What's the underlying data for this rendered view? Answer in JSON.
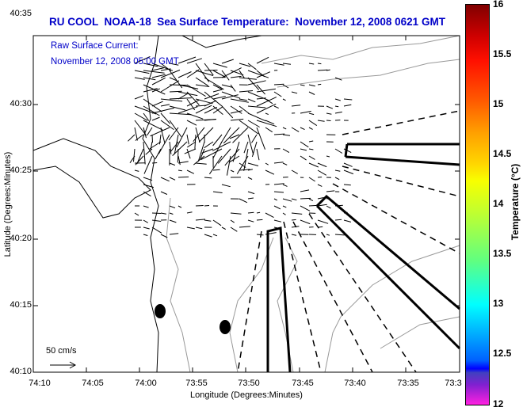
{
  "chart_data": {
    "type": "vector-field map",
    "title": "RU COOL  NOAA-18  Sea Surface Temperature:  November 12, 2008 0621 GMT",
    "annotations": [
      "Raw Surface Current:",
      "November 12, 2008 05:00 GMT"
    ],
    "xlabel": "Longitude (Degrees:Minutes)",
    "ylabel": "Latitude (Degrees:Minutes)",
    "x_ticks": [
      "74:10",
      "74:05",
      "74:00",
      "73:55",
      "73:50",
      "73:45",
      "73:40",
      "73:35",
      "73:3"
    ],
    "y_ticks": [
      "40:35",
      "40:30",
      "40:25",
      "40:20",
      "40:15",
      "40:10"
    ],
    "colorbar": {
      "label": "Temperature (°C)",
      "range": [
        12,
        16
      ],
      "ticks": [
        "16",
        "15.5",
        "15",
        "14.5",
        "14",
        "13.5",
        "13",
        "12.5",
        "12"
      ]
    },
    "scale_legend": "50 cm/s"
  }
}
